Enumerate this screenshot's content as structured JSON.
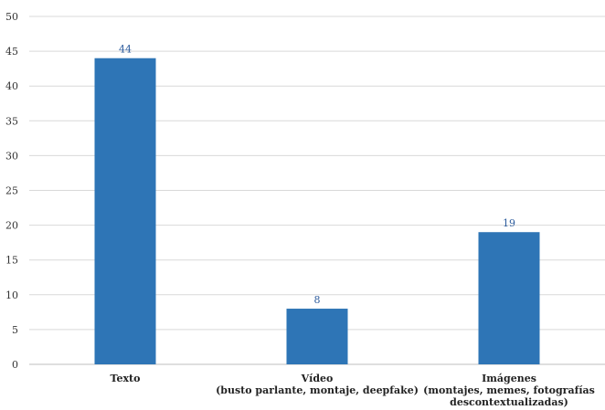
{
  "chart_data": {
    "type": "bar",
    "categories": [
      [
        "Texto"
      ],
      [
        "Vídeo",
        "(busto parlante, montaje, deepfake)"
      ],
      [
        "Imágenes",
        "(montajes, memes, fotografías",
        "descontextualizadas)"
      ]
    ],
    "values": [
      44,
      8,
      19
    ],
    "data_labels": [
      "44",
      "8",
      "19"
    ],
    "title": "",
    "xlabel": "",
    "ylabel": "",
    "ylim": [
      0,
      50
    ],
    "yticks": [
      0,
      5,
      10,
      15,
      20,
      25,
      30,
      35,
      40,
      45,
      50
    ],
    "bar_color": "#2e75b6",
    "grid": true,
    "legend": "none"
  }
}
